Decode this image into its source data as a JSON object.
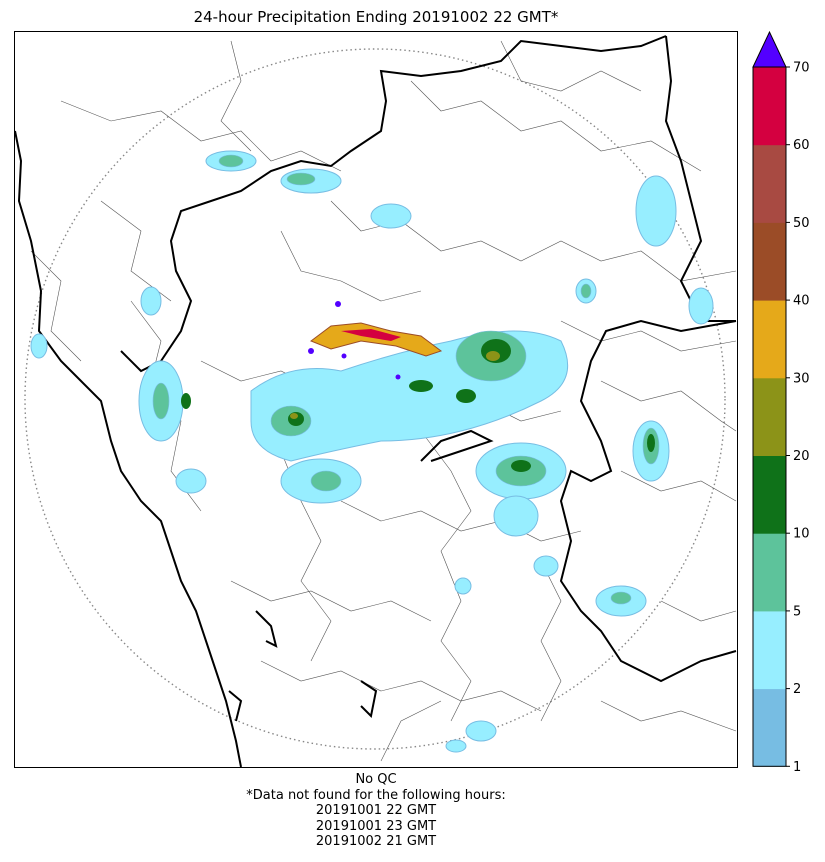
{
  "title": "24-hour Precipitation Ending 20191002 22 GMT*",
  "notes": {
    "qc": "No QC",
    "missing_header": "*Data not found for the following hours:",
    "missing_hours": [
      "20191001 22 GMT",
      "20191001 23 GMT",
      "20191002 21 GMT"
    ]
  },
  "colorbar": {
    "ticks": [
      "1",
      "2",
      "5",
      "10",
      "20",
      "30",
      "40",
      "50",
      "60",
      "70"
    ],
    "bins": [
      {
        "from": 1,
        "to": 2,
        "color": "#77bde3"
      },
      {
        "from": 2,
        "to": 5,
        "color": "#97eeff"
      },
      {
        "from": 5,
        "to": 10,
        "color": "#5dc39b"
      },
      {
        "from": 10,
        "to": 20,
        "color": "#0f7219"
      },
      {
        "from": 20,
        "to": 30,
        "color": "#8c9318"
      },
      {
        "from": 30,
        "to": 40,
        "color": "#e5a91a"
      },
      {
        "from": 40,
        "to": 50,
        "color": "#9b4c27"
      },
      {
        "from": 50,
        "to": 60,
        "color": "#a84a42"
      },
      {
        "from": 60,
        "to": 70,
        "color": "#d40040"
      }
    ],
    "overflow_color": "#5300ff"
  },
  "map": {
    "radar_range_ring": "dotted-grey",
    "borders": [
      "coastline",
      "state-boundaries",
      "district-boundaries"
    ]
  }
}
